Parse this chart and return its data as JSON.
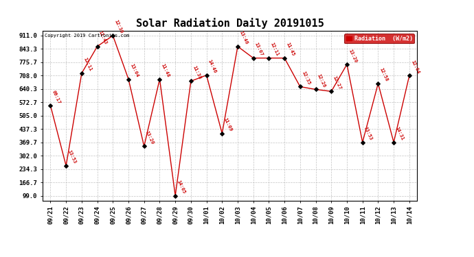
{
  "title": "Solar Radiation Daily 20191015",
  "copyright_text": "Copyright 2019 Cartronics.com",
  "legend_label": "Radiation  (W/m2)",
  "background_color": "#ffffff",
  "plot_bg_color": "#ffffff",
  "grid_color": "#bbbbbb",
  "line_color": "#cc0000",
  "marker_color": "#000000",
  "label_color": "#cc0000",
  "yticks": [
    99.0,
    166.7,
    234.3,
    302.0,
    369.7,
    437.3,
    505.0,
    572.7,
    640.3,
    708.0,
    775.7,
    843.3,
    911.0
  ],
  "ymin": 75.0,
  "ymax": 935.0,
  "dates": [
    "09/21",
    "09/22",
    "09/23",
    "09/24",
    "09/25",
    "09/26",
    "09/27",
    "09/28",
    "09/29",
    "09/30",
    "10/01",
    "10/02",
    "10/03",
    "10/04",
    "10/05",
    "10/06",
    "10/07",
    "10/08",
    "10/09",
    "10/10",
    "10/11",
    "10/12",
    "10/13",
    "10/14"
  ],
  "values": [
    556,
    251,
    720,
    856,
    911,
    690,
    350,
    690,
    99,
    680,
    710,
    415,
    856,
    797,
    797,
    797,
    652,
    638,
    628,
    765,
    370,
    668,
    370,
    708
  ],
  "point_labels": [
    "09:17",
    "13:53",
    "12:11",
    "11:43",
    "12:36",
    "13:04",
    "13:20",
    "11:48",
    "14:05",
    "11:38",
    "14:46",
    "11:09",
    "13:46",
    "13:07",
    "12:11",
    "11:45",
    "12:35",
    "12:26",
    "12:27",
    "13:20",
    "13:53",
    "12:58",
    "14:31",
    "12:04"
  ]
}
